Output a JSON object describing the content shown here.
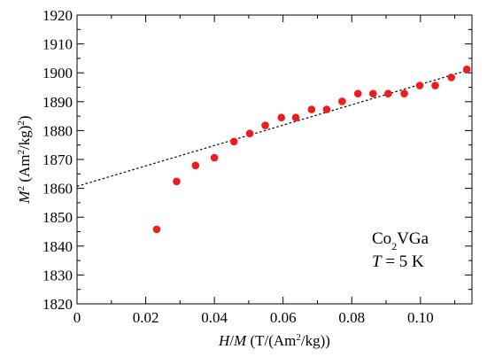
{
  "chart_data": {
    "type": "scatter",
    "x_axis": {
      "range": [
        0,
        0.115
      ],
      "ticks": [
        0,
        0.02,
        0.04,
        0.06,
        0.08,
        0.1
      ],
      "tick_labels": [
        "0",
        "0.02",
        "0.04",
        "0.06",
        "0.08",
        "0.10"
      ],
      "label": {
        "parts": [
          {
            "text": "H",
            "style": "italic"
          },
          {
            "text": "/",
            "style": "normal"
          },
          {
            "text": "M",
            "style": "italic"
          },
          {
            "text": " (T/(Am",
            "style": "normal"
          },
          {
            "text": "2",
            "style": "sup"
          },
          {
            "text": "/kg))",
            "style": "normal"
          }
        ]
      }
    },
    "y_axis": {
      "range": [
        1820,
        1920
      ],
      "ticks": [
        1820,
        1830,
        1840,
        1850,
        1860,
        1870,
        1880,
        1890,
        1900,
        1910,
        1920
      ],
      "tick_labels": [
        "1820",
        "1830",
        "1840",
        "1850",
        "1860",
        "1870",
        "1880",
        "1890",
        "1900",
        "1910",
        "1920"
      ],
      "label": {
        "parts": [
          {
            "text": "M",
            "style": "italic"
          },
          {
            "text": "2",
            "style": "sup"
          },
          {
            "text": " (Am",
            "style": "normal"
          },
          {
            "text": "2",
            "style": "sup"
          },
          {
            "text": "/kg)",
            "style": "normal"
          },
          {
            "text": "2",
            "style": "sup"
          },
          {
            "text": ")",
            "style": "normal"
          }
        ]
      }
    },
    "series": [
      {
        "marker": "circle",
        "color": "#ee1c1c",
        "points": [
          {
            "x": 0.0232,
            "y": 1845.8
          },
          {
            "x": 0.029,
            "y": 1862.4
          },
          {
            "x": 0.0345,
            "y": 1867.9
          },
          {
            "x": 0.04,
            "y": 1870.6
          },
          {
            "x": 0.0457,
            "y": 1876.2
          },
          {
            "x": 0.0503,
            "y": 1879.0
          },
          {
            "x": 0.0548,
            "y": 1881.8
          },
          {
            "x": 0.0595,
            "y": 1884.5
          },
          {
            "x": 0.0637,
            "y": 1884.5
          },
          {
            "x": 0.0683,
            "y": 1887.3
          },
          {
            "x": 0.0727,
            "y": 1887.3
          },
          {
            "x": 0.0772,
            "y": 1890.1
          },
          {
            "x": 0.0818,
            "y": 1892.8
          },
          {
            "x": 0.0862,
            "y": 1892.8
          },
          {
            "x": 0.0906,
            "y": 1892.8
          },
          {
            "x": 0.0953,
            "y": 1892.8
          },
          {
            "x": 0.0998,
            "y": 1895.6
          },
          {
            "x": 0.1043,
            "y": 1895.6
          },
          {
            "x": 0.109,
            "y": 1898.4
          },
          {
            "x": 0.1135,
            "y": 1901.2
          }
        ]
      }
    ],
    "fit_line": {
      "style": "dotted",
      "color": "#000000",
      "x": [
        0,
        0.115
      ],
      "y": [
        1860.7,
        1901.3
      ]
    },
    "annotations": [
      {
        "parts": [
          {
            "text": "Co",
            "style": "normal"
          },
          {
            "text": "2",
            "style": "sub"
          },
          {
            "text": "VGa",
            "style": "normal"
          }
        ]
      },
      {
        "parts": [
          {
            "text": "T",
            "style": "italic"
          },
          {
            "text": " = 5 K",
            "style": "normal"
          }
        ]
      }
    ],
    "grid": false
  }
}
